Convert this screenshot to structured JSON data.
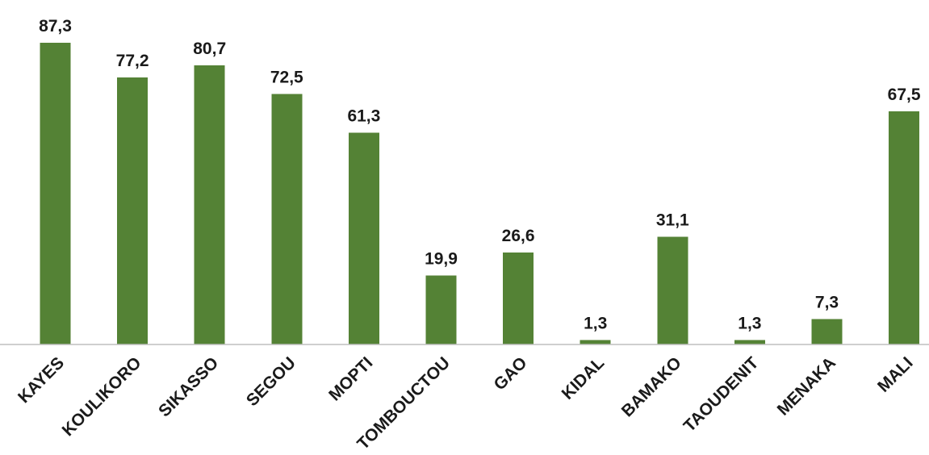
{
  "chart_data": {
    "type": "bar",
    "categories": [
      "KAYES",
      "KOULIKORO",
      "SIKASSO",
      "SEGOU",
      "MOPTI",
      "TOMBOUCTOU",
      "GAO",
      "KIDAL",
      "BAMAKO",
      "TAOUDENIT",
      "MENAKA",
      "MALI"
    ],
    "values": [
      87.3,
      77.2,
      80.7,
      72.5,
      61.3,
      19.9,
      26.6,
      1.3,
      31.1,
      1.3,
      7.3,
      67.5
    ],
    "value_labels": [
      "87,3",
      "77,2",
      "80,7",
      "72,5",
      "61,3",
      "19,9",
      "26,6",
      "1,3",
      "31,1",
      "1,3",
      "7,3",
      "67,5"
    ],
    "title": "",
    "xlabel": "",
    "ylabel": "",
    "ylim": [
      0,
      90
    ],
    "grid": false,
    "legend": "none",
    "bar_color": "#548235",
    "axis_color": "#bfbfbf"
  }
}
